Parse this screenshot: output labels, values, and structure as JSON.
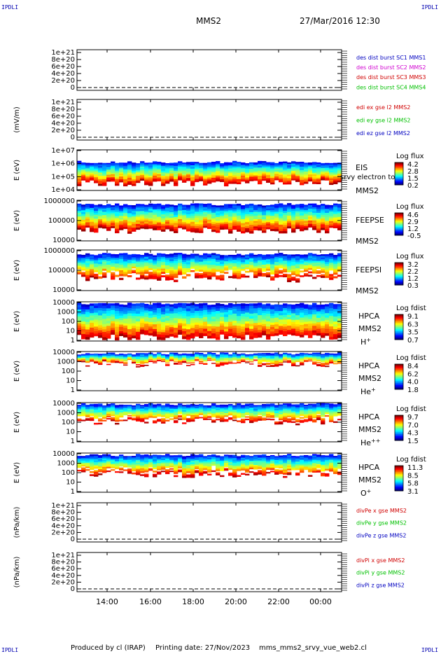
{
  "corners": {
    "tl": "IPDLI",
    "tr": "IPDLI",
    "bl": "IPDLI",
    "br": "IPDLI"
  },
  "header": {
    "spacecraft": "MMS2",
    "datetime": "27/Mar/2016 12:30"
  },
  "footer": {
    "producer": "Produced by cl (IRAP)",
    "printing": "Printing date: 27/Nov/2023",
    "file": "mms_mms2_srvy_vue_web2.cl"
  },
  "colors": {
    "red": "#d00000",
    "magenta": "#d000d0",
    "green": "#00c000",
    "blue": "#0000c0"
  },
  "chart_data": [
    {
      "type": "line",
      "ylabel": "",
      "yticks": [
        "1e+21",
        "8e+20",
        "6e+20",
        "4e+20",
        "2e+20",
        "0"
      ],
      "ylim": [
        0,
        1e+21
      ],
      "legend": [
        {
          "text": "des dist burst SC1 MMS1",
          "color": "#0000c0"
        },
        {
          "text": "des dist burst SC2 MMS2",
          "color": "#d000d0"
        },
        {
          "text": "des dist burst SC3 MMS3",
          "color": "#d00000"
        },
        {
          "text": "des dist burst SC4 MMS4",
          "color": "#00c000"
        }
      ]
    },
    {
      "type": "line",
      "ylabel": "(mV/m)",
      "yticks": [
        "1e+21",
        "8e+20",
        "6e+20",
        "4e+20",
        "2e+20",
        "0"
      ],
      "ylim": [
        0,
        1e+21
      ],
      "legend": [
        {
          "text": "edi ex gse l2 MMS2",
          "color": "#d00000"
        },
        {
          "text": "edi ey gse l2 MMS2",
          "color": "#00c000"
        },
        {
          "text": "edi ez gse l2 MMS2",
          "color": "#0000c0"
        }
      ]
    },
    {
      "type": "heatmap",
      "ylabel": "E (eV)",
      "yticks": [
        "1e+07",
        "1e+06",
        "1e+05",
        "1e+04"
      ],
      "ylim": [
        10000,
        10000000
      ],
      "instrument": [
        "EIS",
        "MMS2"
      ],
      "overlay": "srvy electron tof",
      "cbar_title": "Log flux",
      "cbar_ticks": [
        "4.2",
        "2.8",
        "1.5",
        "0.2"
      ]
    },
    {
      "type": "heatmap",
      "ylabel": "E (eV)",
      "yticks": [
        "1000000",
        "100000",
        "10000"
      ],
      "ylim": [
        10000,
        1000000
      ],
      "instrument": [
        "FEEPSE",
        "MMS2"
      ],
      "cbar_title": "Log flux",
      "cbar_ticks": [
        "4.6",
        "2.9",
        "1.2",
        "-0.5"
      ]
    },
    {
      "type": "heatmap",
      "ylabel": "E (eV)",
      "yticks": [
        "1000000",
        "100000",
        "10000"
      ],
      "ylim": [
        10000,
        1000000
      ],
      "instrument": [
        "FEEPSI",
        "MMS2"
      ],
      "cbar_title": "Log flux",
      "cbar_ticks": [
        "3.2",
        "2.2",
        "1.2",
        "0.3"
      ]
    },
    {
      "type": "heatmap",
      "ylabel": "E (eV)",
      "yticks": [
        "10000",
        "1000",
        "100",
        "10",
        "1"
      ],
      "ylim": [
        1,
        20000
      ],
      "instrument": [
        "HPCA",
        "MMS2",
        "H+"
      ],
      "cbar_title": "Log fdist",
      "cbar_ticks": [
        "9.1",
        "6.3",
        "3.5",
        "0.7"
      ]
    },
    {
      "type": "heatmap",
      "ylabel": "E (eV)",
      "yticks": [
        "10000",
        "1000",
        "100",
        "10",
        "1"
      ],
      "ylim": [
        1,
        20000
      ],
      "instrument": [
        "HPCA",
        "MMS2",
        "He+"
      ],
      "cbar_title": "Log fdist",
      "cbar_ticks": [
        "8.4",
        "6.2",
        "4.0",
        "1.8"
      ]
    },
    {
      "type": "heatmap",
      "ylabel": "E (eV)",
      "yticks": [
        "10000",
        "1000",
        "100",
        "10",
        "1"
      ],
      "ylim": [
        1,
        20000
      ],
      "instrument": [
        "HPCA",
        "MMS2",
        "He++"
      ],
      "cbar_title": "Log fdist",
      "cbar_ticks": [
        "9.7",
        "7.0",
        "4.3",
        "1.5"
      ]
    },
    {
      "type": "heatmap",
      "ylabel": "E (eV)",
      "yticks": [
        "10000",
        "1000",
        "100",
        "10",
        "1"
      ],
      "ylim": [
        1,
        20000
      ],
      "instrument": [
        "HPCA",
        "MMS2",
        "O+"
      ],
      "cbar_title": "Log fdist",
      "cbar_ticks": [
        "11.3",
        "8.5",
        "5.8",
        "3.1"
      ]
    },
    {
      "type": "line",
      "ylabel": "(nPa/km)",
      "yticks": [
        "1e+21",
        "8e+20",
        "6e+20",
        "4e+20",
        "2e+20",
        "0"
      ],
      "ylim": [
        0,
        1e+21
      ],
      "legend": [
        {
          "text": "divPe x gse MMS2",
          "color": "#d00000"
        },
        {
          "text": "divPe y gse MMS2",
          "color": "#00c000"
        },
        {
          "text": "divPe z gse MMS2",
          "color": "#0000c0"
        }
      ]
    },
    {
      "type": "line",
      "ylabel": "(nPa/km)",
      "yticks": [
        "1e+21",
        "8e+20",
        "6e+20",
        "4e+20",
        "2e+20",
        "0"
      ],
      "ylim": [
        0,
        1e+21
      ],
      "legend": [
        {
          "text": "divPi x gse MMS2",
          "color": "#d00000"
        },
        {
          "text": "divPi y gse MMS2",
          "color": "#00c000"
        },
        {
          "text": "divPi z gse MMS2",
          "color": "#0000c0"
        }
      ],
      "xticks": [
        "14:00",
        "16:00",
        "18:00",
        "20:00",
        "22:00",
        "00:00"
      ]
    }
  ]
}
